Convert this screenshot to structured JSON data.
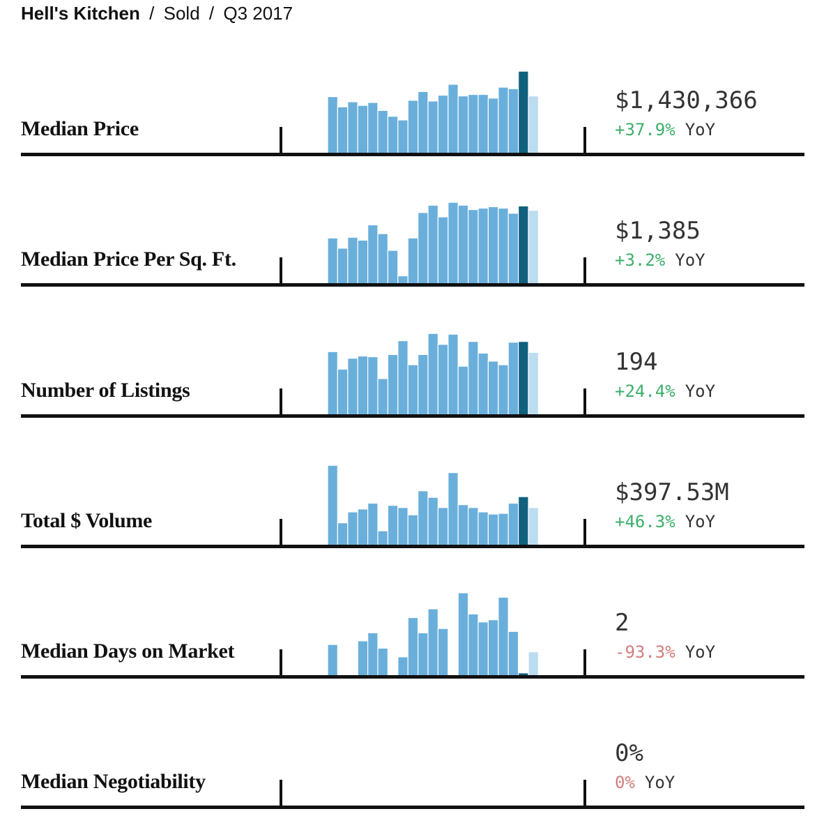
{
  "breadcrumb": {
    "neighborhood": "Hell's Kitchen",
    "separator": "/",
    "status": "Sold",
    "quarter": "Q3 2017"
  },
  "colors": {
    "bar": "#6aafdb",
    "current": "#10607e",
    "projection": "#bcdcf0",
    "positive": "#3dae6a",
    "negative": "#d27d7d"
  },
  "yoy_label": "YoY",
  "chart_data": [
    {
      "type": "bar",
      "metric": "Median Price",
      "value": "$1,430,366",
      "change": "+37.9%",
      "direction": "positive",
      "ylim": [
        0,
        115
      ],
      "values": [
        78,
        64,
        71,
        66,
        70,
        59,
        51,
        46,
        73,
        85,
        72,
        80,
        95,
        79,
        81,
        81,
        76,
        91,
        89,
        113,
        79
      ],
      "highlight_index": 19,
      "projection_index": 20
    },
    {
      "type": "bar",
      "metric": "Median Price Per Sq. Ft.",
      "value": "$1,385",
      "change": "+3.2%",
      "direction": "positive",
      "ylim": [
        0,
        115
      ],
      "values": [
        63,
        49,
        64,
        60,
        81,
        69,
        46,
        11,
        63,
        98,
        108,
        92,
        112,
        108,
        102,
        104,
        106,
        104,
        97,
        107,
        101
      ],
      "highlight_index": 19,
      "projection_index": 20
    },
    {
      "type": "bar",
      "metric": "Number of Listings",
      "value": "194",
      "change": "+24.4%",
      "direction": "positive",
      "ylim": [
        0,
        115
      ],
      "values": [
        87,
        63,
        78,
        81,
        80,
        50,
        83,
        102,
        69,
        83,
        112,
        97,
        111,
        67,
        101,
        85,
        74,
        69,
        100,
        101,
        86
      ],
      "highlight_index": 19,
      "projection_index": 20
    },
    {
      "type": "bar",
      "metric": "Total $ Volume",
      "value": "$397.53M",
      "change": "+46.3%",
      "direction": "positive",
      "ylim": [
        0,
        115
      ],
      "values": [
        110,
        31,
        46,
        50,
        58,
        20,
        55,
        52,
        42,
        75,
        66,
        52,
        100,
        56,
        52,
        46,
        43,
        44,
        58,
        67,
        52
      ],
      "highlight_index": 19,
      "projection_index": 20
    },
    {
      "type": "bar",
      "metric": "Median Days on Market",
      "value": "2",
      "change": "-93.3%",
      "direction": "negative",
      "ylim": [
        0,
        115
      ],
      "values": [
        43,
        0,
        0,
        48,
        59,
        38,
        0,
        26,
        80,
        59,
        92,
        65,
        0,
        114,
        85,
        74,
        77,
        108,
        61,
        4,
        33
      ],
      "highlight_index": 19,
      "projection_index": 20
    },
    {
      "type": "bar",
      "metric": "Median Negotiability",
      "value": "0%",
      "change": "0%",
      "direction": "negative",
      "ylim": [
        0,
        115
      ],
      "values": [],
      "highlight_index": 19,
      "projection_index": 20
    }
  ]
}
